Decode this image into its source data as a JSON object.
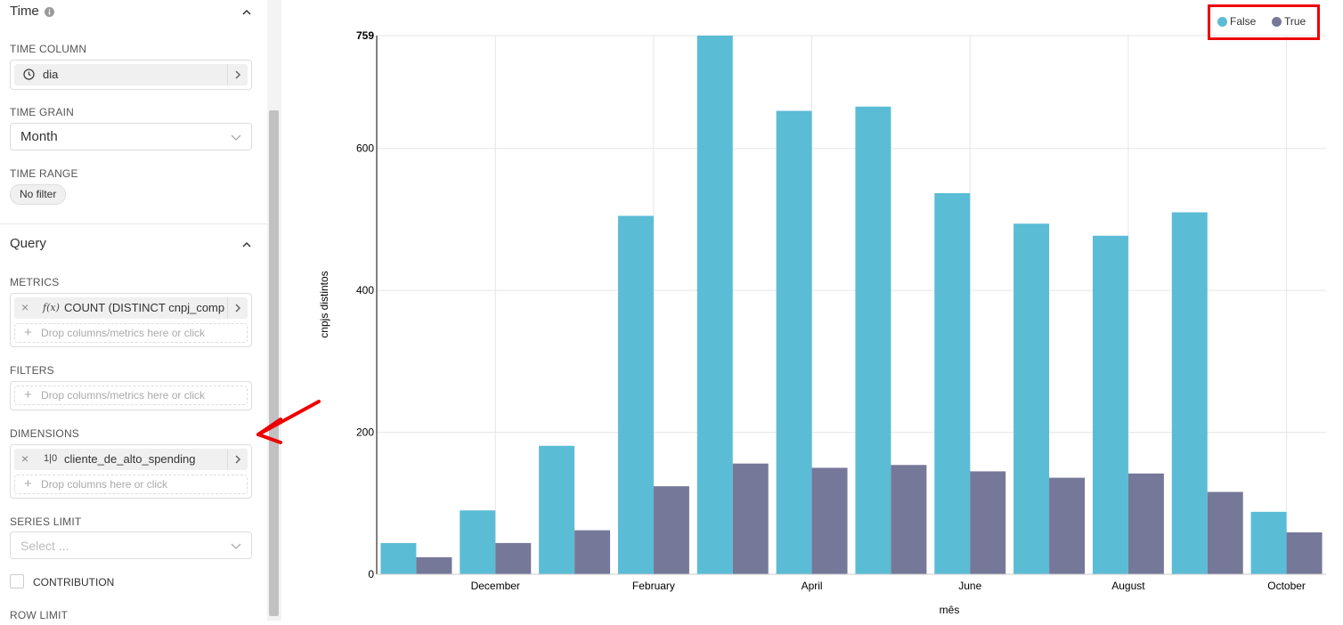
{
  "sidebar": {
    "time_section": {
      "title": "Time",
      "info_icon": "info-icon"
    },
    "time_column": {
      "label": "TIME COLUMN",
      "value": "dia"
    },
    "time_grain": {
      "label": "TIME GRAIN",
      "value": "Month"
    },
    "time_range": {
      "label": "TIME RANGE",
      "value": "No filter"
    },
    "query_section": {
      "title": "Query"
    },
    "metrics": {
      "label": "METRICS",
      "value": "COUNT (DISTINCT cnpj_comp...",
      "fx": "f(x)",
      "drop_hint": "Drop columns/metrics here or click"
    },
    "filters": {
      "label": "FILTERS",
      "drop_hint": "Drop columns/metrics here or click"
    },
    "dimensions": {
      "label": "DIMENSIONS",
      "value": "cliente_de_alto_spending",
      "type_icon": "1|0",
      "drop_hint": "Drop columns here or click"
    },
    "series_limit": {
      "label": "SERIES LIMIT",
      "placeholder": "Select ..."
    },
    "contribution": {
      "label": "CONTRIBUTION"
    },
    "row_limit": {
      "label": "ROW LIMIT"
    }
  },
  "colors": {
    "false_series": "#5bbcd6",
    "true_series": "#767899",
    "annotation": "#e00000"
  },
  "chart_data": {
    "type": "bar",
    "xlabel": "mês",
    "ylabel": "cnpjs distintos",
    "ylim": [
      0,
      759
    ],
    "yticks": [
      0,
      200,
      400,
      600,
      759
    ],
    "x_tick_labels": [
      "December",
      "February",
      "April",
      "June",
      "August",
      "October"
    ],
    "grid": true,
    "legend_position": "top-right",
    "series": [
      {
        "name": "False",
        "color": "#5bbcd6",
        "values": [
          44,
          90,
          181,
          505,
          759,
          653,
          659,
          537,
          494,
          477,
          510,
          88
        ]
      },
      {
        "name": "True",
        "color": "#767899",
        "values": [
          24,
          44,
          62,
          124,
          156,
          150,
          154,
          145,
          136,
          142,
          116,
          59
        ]
      }
    ]
  }
}
